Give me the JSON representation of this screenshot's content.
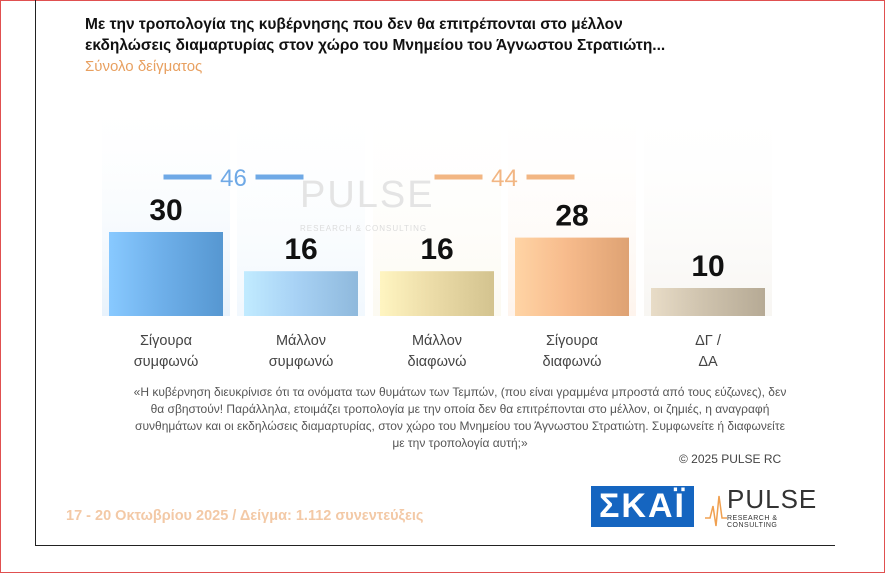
{
  "header": {
    "title_line1": "Με την τροπολογία της κυβέρνησης που δεν θα επιτρέπονται στο μέλλον",
    "title_line2": "εκδηλώσεις διαμαρτυρίας στον χώρο του Μνημείου του Άγνωστου Στρατιώτη...",
    "subtitle": "Σύνολο δείγματος"
  },
  "chart_data": {
    "type": "bar",
    "categories": [
      "Σίγουρα συμφωνώ",
      "Μάλλον συμφωνώ",
      "Μάλλον διαφωνώ",
      "Σίγουρα διαφωνώ",
      "ΔΓ / ΔΑ"
    ],
    "category_lines": [
      [
        "Σίγουρα",
        "συμφωνώ"
      ],
      [
        "Μάλλον",
        "συμφωνώ"
      ],
      [
        "Μάλλον",
        "διαφωνώ"
      ],
      [
        "Σίγουρα",
        "διαφωνώ"
      ],
      [
        "ΔΓ /",
        "ΔΑ"
      ]
    ],
    "values": [
      30,
      16,
      16,
      28,
      10
    ],
    "value_labels": [
      "30",
      "16",
      "16",
      "28",
      "10"
    ],
    "colors": [
      "#6fb0ea",
      "#a8d2f5",
      "#ecdca8",
      "#f7bb8c",
      "#cfc3ae"
    ],
    "groups": [
      {
        "label": "46",
        "color": "#6fa9e6",
        "categories": [
          0,
          1
        ]
      },
      {
        "label": "44",
        "color": "#f2b683",
        "categories": [
          2,
          3
        ]
      }
    ],
    "ylim": [
      0,
      40
    ]
  },
  "watermark": {
    "name": "PULSE",
    "sub": "RESEARCH & CONSULTING"
  },
  "note": {
    "quote": "«Η κυβέρνηση διευκρίνισε ότι τα ονόματα των θυμάτων των Τεμπών, (που είναι γραμμένα μπροστά από τους εύζωνες), δεν θα σβηστούν! Παράλληλα, ετοιμάζει τροπολογία με την οποία δεν θα επιτρέπονται στο μέλλον, οι ζημιές, η αναγραφή συνθημάτων και οι εκδηλώσεις διαμαρτυρίας, στον χώρο του Μνημείου του Άγνωστου Στρατιώτη. Συμφωνείτε ή διαφωνείτε με την τροπολογία αυτή;»",
    "copyright": "© 2025 PULSE RC"
  },
  "footer": {
    "dates": "17 - 20 Οκτωβρίου 2025 / Δείγμα: 1.112 συνεντεύξεις",
    "skai_logo": "ΣΚΑΪ",
    "pulse_logo": "PULSE",
    "pulse_sub": "RESEARCH & CONSULTING"
  }
}
